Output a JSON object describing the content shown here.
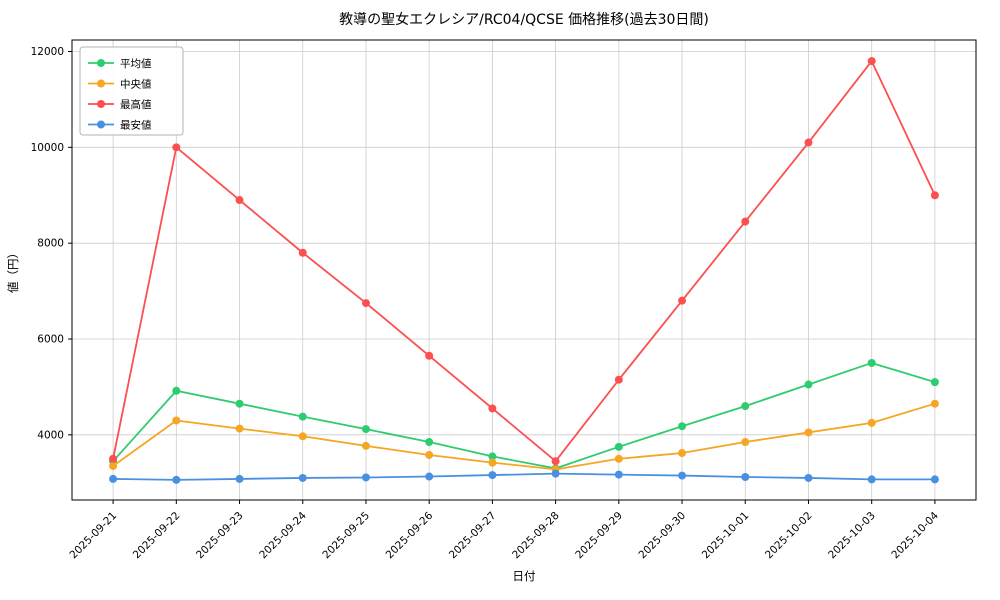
{
  "chart_data": {
    "type": "line",
    "title": "教導の聖女エクレシア/RC04/QCSE 価格推移(過去30日間)",
    "xlabel": "日付",
    "ylabel": "値（円）",
    "x": [
      "2025-09-21",
      "2025-09-22",
      "2025-09-23",
      "2025-09-24",
      "2025-09-25",
      "2025-09-26",
      "2025-09-27",
      "2025-09-28",
      "2025-09-29",
      "2025-09-30",
      "2025-10-01",
      "2025-10-02",
      "2025-10-03",
      "2025-10-04"
    ],
    "series": [
      {
        "name": "平均値",
        "color": "#2ecc71",
        "values": [
          3450,
          4920,
          4650,
          4380,
          4120,
          3850,
          3550,
          3300,
          3750,
          4180,
          4600,
          5050,
          5500,
          5100
        ]
      },
      {
        "name": "中央値",
        "color": "#f5a623",
        "values": [
          3350,
          4300,
          4130,
          3970,
          3770,
          3580,
          3420,
          3280,
          3500,
          3620,
          3850,
          4050,
          4250,
          4650
        ]
      },
      {
        "name": "最高値",
        "color": "#fc4f4f",
        "values": [
          3500,
          10000,
          8900,
          7800,
          6750,
          5650,
          4550,
          3450,
          5150,
          6800,
          8450,
          10100,
          11800,
          9000
        ]
      },
      {
        "name": "最安値",
        "color": "#4a90e2",
        "values": [
          3080,
          3060,
          3080,
          3100,
          3110,
          3130,
          3160,
          3190,
          3170,
          3150,
          3120,
          3100,
          3070,
          3070
        ]
      }
    ],
    "ylim": [
      2640,
      12240
    ],
    "yticks": [
      4000,
      6000,
      8000,
      10000,
      12000
    ],
    "grid": true,
    "grid_color": "#cccccc",
    "legend_position": "upper left",
    "background": "#ffffff"
  }
}
